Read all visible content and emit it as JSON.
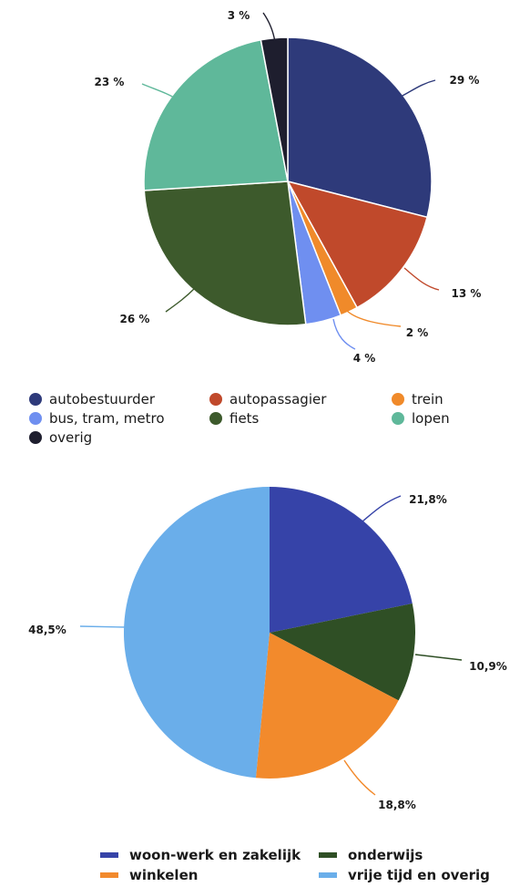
{
  "chart_data": [
    {
      "type": "pie",
      "title": "",
      "legend_position": "bottom",
      "slices": [
        {
          "name": "autobestuurder",
          "value": 29,
          "label": "29 %",
          "color": "#2e3a7a"
        },
        {
          "name": "autopassagier",
          "value": 13,
          "label": "13 %",
          "color": "#c0492b"
        },
        {
          "name": "trein",
          "value": 2,
          "label": "2 %",
          "color": "#f08a2a"
        },
        {
          "name": "bus, tram, metro",
          "value": 4,
          "label": "4 %",
          "color": "#6f8ff0"
        },
        {
          "name": "fiets",
          "value": 26,
          "label": "26 %",
          "color": "#3d5a2c"
        },
        {
          "name": "lopen",
          "value": 23,
          "label": "23 %",
          "color": "#5fb89a"
        },
        {
          "name": "overig",
          "value": 3,
          "label": "3 %",
          "color": "#1e1e2e"
        }
      ]
    },
    {
      "type": "pie",
      "title": "",
      "legend_position": "bottom",
      "slices": [
        {
          "name": "woon-werk en zakelijk",
          "value": 21.8,
          "label": "21,8%",
          "color": "#3643a8"
        },
        {
          "name": "onderwijs",
          "value": 10.9,
          "label": "10,9%",
          "color": "#2f4f25"
        },
        {
          "name": "winkelen",
          "value": 18.8,
          "label": "18,8%",
          "color": "#f28a2c"
        },
        {
          "name": "vrije tijd en overig",
          "value": 48.5,
          "label": "48,5%",
          "color": "#6aaeea"
        }
      ]
    }
  ]
}
